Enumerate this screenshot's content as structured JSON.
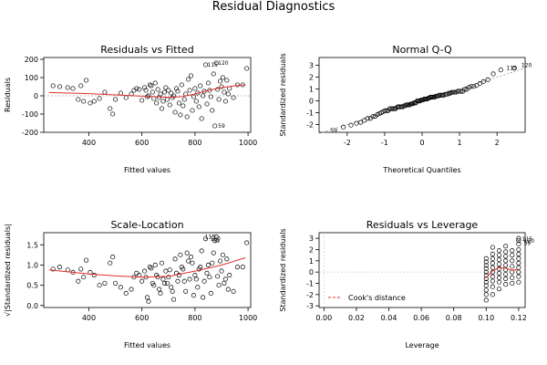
{
  "title": "Residual Diagnostics",
  "chart_data": [
    {
      "type": "scatter",
      "title": "Residuals vs Fitted",
      "xlabel": "Fitted values",
      "ylabel": "Residuals",
      "xlim": [
        230,
        1010
      ],
      "ylim": [
        -200,
        210
      ],
      "xticks": [
        400,
        600,
        800,
        1000
      ],
      "yticks": [
        -200,
        -100,
        0,
        100,
        200
      ],
      "reference_line": 0,
      "smoother": [
        [
          250,
          18
        ],
        [
          400,
          12
        ],
        [
          500,
          5
        ],
        [
          600,
          -2
        ],
        [
          700,
          -8
        ],
        [
          750,
          -5
        ],
        [
          800,
          10
        ],
        [
          850,
          30
        ],
        [
          900,
          45
        ],
        [
          950,
          55
        ],
        [
          990,
          60
        ]
      ],
      "point_labels": [
        {
          "text": "115",
          "x": 840,
          "y": 170
        },
        {
          "text": "120",
          "x": 880,
          "y": 180
        },
        {
          "text": "59",
          "x": 880,
          "y": -165
        }
      ],
      "points": [
        [
          265,
          55
        ],
        [
          290,
          50
        ],
        [
          320,
          45
        ],
        [
          340,
          40
        ],
        [
          360,
          -20
        ],
        [
          370,
          55
        ],
        [
          380,
          -30
        ],
        [
          390,
          85
        ],
        [
          405,
          -40
        ],
        [
          420,
          -30
        ],
        [
          440,
          -15
        ],
        [
          460,
          20
        ],
        [
          480,
          -70
        ],
        [
          490,
          -100
        ],
        [
          500,
          -20
        ],
        [
          520,
          15
        ],
        [
          540,
          -10
        ],
        [
          560,
          10
        ],
        [
          570,
          30
        ],
        [
          580,
          40
        ],
        [
          590,
          35
        ],
        [
          600,
          -25
        ],
        [
          610,
          45
        ],
        [
          615,
          30
        ],
        [
          620,
          -5
        ],
        [
          625,
          0
        ],
        [
          630,
          60
        ],
        [
          635,
          55
        ],
        [
          640,
          20
        ],
        [
          645,
          -15
        ],
        [
          650,
          70
        ],
        [
          655,
          -40
        ],
        [
          660,
          35
        ],
        [
          665,
          -10
        ],
        [
          670,
          10
        ],
        [
          675,
          -70
        ],
        [
          680,
          -30
        ],
        [
          685,
          20
        ],
        [
          690,
          45
        ],
        [
          695,
          -20
        ],
        [
          700,
          30
        ],
        [
          705,
          -50
        ],
        [
          710,
          15
        ],
        [
          715,
          -10
        ],
        [
          720,
          0
        ],
        [
          725,
          -90
        ],
        [
          730,
          40
        ],
        [
          735,
          25
        ],
        [
          740,
          -40
        ],
        [
          745,
          -105
        ],
        [
          750,
          60
        ],
        [
          755,
          -55
        ],
        [
          760,
          -20
        ],
        [
          765,
          10
        ],
        [
          770,
          -115
        ],
        [
          775,
          90
        ],
        [
          780,
          30
        ],
        [
          785,
          110
        ],
        [
          790,
          -80
        ],
        [
          795,
          -5
        ],
        [
          800,
          40
        ],
        [
          805,
          -30
        ],
        [
          810,
          15
        ],
        [
          815,
          -60
        ],
        [
          820,
          55
        ],
        [
          825,
          -125
        ],
        [
          830,
          0
        ],
        [
          835,
          25
        ],
        [
          840,
          170
        ],
        [
          845,
          -45
        ],
        [
          850,
          70
        ],
        [
          855,
          30
        ],
        [
          860,
          -5
        ],
        [
          865,
          -80
        ],
        [
          870,
          120
        ],
        [
          875,
          -165
        ],
        [
          880,
          180
        ],
        [
          885,
          35
        ],
        [
          890,
          -20
        ],
        [
          895,
          80
        ],
        [
          900,
          50
        ],
        [
          905,
          100
        ],
        [
          910,
          20
        ],
        [
          915,
          -30
        ],
        [
          920,
          85
        ],
        [
          925,
          10
        ],
        [
          930,
          40
        ],
        [
          945,
          -10
        ],
        [
          960,
          60
        ],
        [
          980,
          60
        ],
        [
          995,
          150
        ]
      ]
    },
    {
      "type": "scatter",
      "title": "Normal Q-Q",
      "xlabel": "Theoretical Quantiles",
      "ylabel": "Standardized residuals",
      "xlim": [
        -2.75,
        2.75
      ],
      "ylim": [
        -2.65,
        3.65
      ],
      "xticks": [
        -2,
        -1,
        0,
        1,
        2
      ],
      "yticks": [
        -2,
        -1,
        0,
        1,
        2,
        3
      ],
      "reference_line": [
        [
          -2.75,
          -2.75
        ],
        [
          2.75,
          2.75
        ]
      ],
      "point_labels": [
        {
          "text": "59",
          "x": -2.5,
          "y": -2.5
        },
        {
          "text": "115",
          "x": 2.2,
          "y": 2.75
        },
        {
          "text": "120",
          "x": 2.6,
          "y": 3.0
        }
      ],
      "points": []
    },
    {
      "type": "scatter",
      "title": "Scale-Location",
      "xlabel": "Fitted values",
      "ylabel": "√|Standardized residuals|",
      "xlim": [
        230,
        1010
      ],
      "ylim": [
        -0.05,
        1.8
      ],
      "xticks": [
        400,
        600,
        800,
        1000
      ],
      "yticks": [
        0.0,
        0.5,
        1.0,
        1.5
      ],
      "smoother": [
        [
          250,
          0.88
        ],
        [
          400,
          0.78
        ],
        [
          500,
          0.73
        ],
        [
          600,
          0.7
        ],
        [
          700,
          0.72
        ],
        [
          800,
          0.85
        ],
        [
          900,
          1.0
        ],
        [
          990,
          1.18
        ]
      ],
      "point_labels": [
        {
          "text": "115",
          "x": 830,
          "y": 1.7
        },
        {
          "text": "120",
          "x": 850,
          "y": 1.65
        },
        {
          "text": "59",
          "x": 860,
          "y": 1.6
        }
      ],
      "points": [
        [
          265,
          0.9
        ],
        [
          290,
          0.95
        ],
        [
          320,
          0.88
        ],
        [
          340,
          0.82
        ],
        [
          360,
          0.6
        ],
        [
          370,
          0.9
        ],
        [
          380,
          0.7
        ],
        [
          390,
          1.12
        ],
        [
          405,
          0.82
        ],
        [
          420,
          0.75
        ],
        [
          440,
          0.5
        ],
        [
          460,
          0.55
        ],
        [
          480,
          1.05
        ],
        [
          490,
          1.2
        ],
        [
          500,
          0.55
        ],
        [
          520,
          0.45
        ],
        [
          540,
          0.3
        ],
        [
          560,
          0.4
        ],
        [
          570,
          0.7
        ],
        [
          580,
          0.8
        ],
        [
          590,
          0.75
        ],
        [
          600,
          0.6
        ],
        [
          610,
          0.85
        ],
        [
          615,
          0.7
        ],
        [
          620,
          0.2
        ],
        [
          625,
          0.1
        ],
        [
          630,
          0.95
        ],
        [
          635,
          0.92
        ],
        [
          640,
          0.55
        ],
        [
          645,
          0.5
        ],
        [
          650,
          1.0
        ],
        [
          655,
          0.75
        ],
        [
          660,
          0.7
        ],
        [
          665,
          0.4
        ],
        [
          670,
          0.3
        ],
        [
          675,
          1.05
        ],
        [
          680,
          0.65
        ],
        [
          685,
          0.55
        ],
        [
          690,
          0.85
        ],
        [
          695,
          0.55
        ],
        [
          700,
          0.7
        ],
        [
          705,
          0.88
        ],
        [
          710,
          0.45
        ],
        [
          715,
          0.35
        ],
        [
          720,
          0.15
        ],
        [
          725,
          1.15
        ],
        [
          730,
          0.8
        ],
        [
          735,
          0.6
        ],
        [
          740,
          0.75
        ],
        [
          745,
          1.25
        ],
        [
          750,
          0.95
        ],
        [
          755,
          0.9
        ],
        [
          760,
          0.6
        ],
        [
          765,
          0.35
        ],
        [
          770,
          1.3
        ],
        [
          775,
          1.1
        ],
        [
          780,
          0.65
        ],
        [
          785,
          1.2
        ],
        [
          790,
          1.05
        ],
        [
          795,
          0.25
        ],
        [
          800,
          0.75
        ],
        [
          805,
          0.65
        ],
        [
          810,
          0.45
        ],
        [
          815,
          0.9
        ],
        [
          820,
          0.95
        ],
        [
          825,
          1.35
        ],
        [
          830,
          0.2
        ],
        [
          835,
          0.6
        ],
        [
          840,
          1.65
        ],
        [
          845,
          0.8
        ],
        [
          850,
          1.0
        ],
        [
          855,
          0.7
        ],
        [
          860,
          0.3
        ],
        [
          865,
          1.05
        ],
        [
          870,
          1.3
        ],
        [
          875,
          1.6
        ],
        [
          880,
          1.7
        ],
        [
          885,
          0.72
        ],
        [
          890,
          0.5
        ],
        [
          895,
          1.1
        ],
        [
          900,
          0.85
        ],
        [
          905,
          1.25
        ],
        [
          910,
          0.55
        ],
        [
          915,
          0.65
        ],
        [
          920,
          1.15
        ],
        [
          925,
          0.4
        ],
        [
          930,
          0.75
        ],
        [
          945,
          0.35
        ],
        [
          960,
          0.95
        ],
        [
          980,
          0.95
        ],
        [
          995,
          1.55
        ]
      ]
    },
    {
      "type": "scatter",
      "title": "Residuals vs Leverage",
      "xlabel": "Leverage",
      "ylabel": "Standardized residuals",
      "xlim": [
        -0.003,
        0.124
      ],
      "ylim": [
        -3.15,
        3.5
      ],
      "xticks": [
        0.0,
        0.02,
        0.04,
        0.06,
        0.08,
        0.1,
        0.12
      ],
      "xtick_labels": [
        "0.00",
        "0.02",
        "0.04",
        "0.06",
        "0.08",
        "0.10",
        "0.12"
      ],
      "yticks": [
        -3,
        -2,
        -1,
        0,
        1,
        2,
        3
      ],
      "legend": {
        "text": "Cook's distance",
        "placement": "bottom-left"
      },
      "smoother": [
        [
          0.1,
          -0.5
        ],
        [
          0.104,
          0.1
        ],
        [
          0.108,
          0.4
        ],
        [
          0.112,
          0.35
        ],
        [
          0.116,
          0.15
        ],
        [
          0.12,
          0.25
        ]
      ],
      "point_labels": [
        {
          "text": "115",
          "x": 0.121,
          "y": 2.95
        },
        {
          "text": "120",
          "x": 0.122,
          "y": 2.75
        },
        {
          "text": "59",
          "x": 0.122,
          "y": 2.55
        }
      ],
      "points": [
        [
          0.1,
          -2.5
        ],
        [
          0.1,
          -2.0
        ],
        [
          0.1,
          -1.6
        ],
        [
          0.1,
          -1.2
        ],
        [
          0.1,
          -0.9
        ],
        [
          0.1,
          -0.6
        ],
        [
          0.1,
          -0.3
        ],
        [
          0.1,
          0.0
        ],
        [
          0.1,
          0.3
        ],
        [
          0.1,
          0.6
        ],
        [
          0.1,
          0.9
        ],
        [
          0.1,
          1.2
        ],
        [
          0.104,
          -2.0
        ],
        [
          0.104,
          -1.3
        ],
        [
          0.104,
          -0.8
        ],
        [
          0.104,
          -0.4
        ],
        [
          0.104,
          0.0
        ],
        [
          0.104,
          0.4
        ],
        [
          0.104,
          0.8
        ],
        [
          0.104,
          1.2
        ],
        [
          0.104,
          1.6
        ],
        [
          0.104,
          2.2
        ],
        [
          0.108,
          -1.5
        ],
        [
          0.108,
          -0.9
        ],
        [
          0.108,
          -0.5
        ],
        [
          0.108,
          -0.1
        ],
        [
          0.108,
          0.3
        ],
        [
          0.108,
          0.7
        ],
        [
          0.108,
          1.1
        ],
        [
          0.108,
          1.5
        ],
        [
          0.108,
          1.9
        ],
        [
          0.112,
          -1.1
        ],
        [
          0.112,
          -0.6
        ],
        [
          0.112,
          -0.2
        ],
        [
          0.112,
          0.2
        ],
        [
          0.112,
          0.6
        ],
        [
          0.112,
          1.0
        ],
        [
          0.112,
          1.4
        ],
        [
          0.112,
          1.8
        ],
        [
          0.112,
          2.3
        ],
        [
          0.116,
          -1.0
        ],
        [
          0.116,
          -0.5
        ],
        [
          0.116,
          0.0
        ],
        [
          0.116,
          0.5
        ],
        [
          0.116,
          1.0
        ],
        [
          0.116,
          1.5
        ],
        [
          0.116,
          1.9
        ],
        [
          0.12,
          -0.9
        ],
        [
          0.12,
          -0.4
        ],
        [
          0.12,
          0.0
        ],
        [
          0.12,
          0.4
        ],
        [
          0.12,
          0.8
        ],
        [
          0.12,
          1.2
        ],
        [
          0.12,
          1.6
        ],
        [
          0.12,
          2.0
        ],
        [
          0.12,
          2.5
        ],
        [
          0.12,
          2.8
        ],
        [
          0.12,
          3.0
        ]
      ]
    }
  ]
}
